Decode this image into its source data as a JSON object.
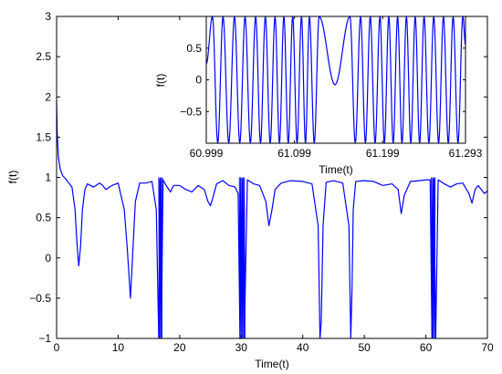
{
  "chart_data": [
    {
      "type": "line",
      "role": "main",
      "xlabel": "Time(t)",
      "ylabel": "f(t)",
      "xlim": [
        0,
        70
      ],
      "ylim": [
        -1,
        3
      ],
      "xticks": [
        0,
        10,
        20,
        30,
        40,
        50,
        60,
        70
      ],
      "yticks": [
        -1,
        -0.5,
        0,
        0.5,
        1,
        1.5,
        2,
        2.5,
        3
      ],
      "ytick_labels": [
        "−1",
        "−0.5",
        "0",
        "0.5",
        "1",
        "1.5",
        "2",
        "2.5",
        "3"
      ],
      "grid": false,
      "line_color": "#0000ff",
      "series": [
        {
          "x": [
            0,
            0.1,
            0.3,
            0.6,
            1.0,
            1.5,
            2.0,
            2.5,
            3.0,
            3.3,
            3.6,
            3.9,
            4.2,
            4.6,
            5.0,
            6.0,
            7.0,
            7.5,
            8.0,
            9.0,
            10.0,
            11.0,
            11.5,
            12.0,
            12.4,
            12.8,
            13.5,
            14.5,
            15.5,
            16.2,
            16.6,
            16.8,
            17.0,
            17.3,
            17.8,
            18.5,
            19.0,
            20.0,
            21.0,
            22.0,
            23.0,
            24.0,
            24.6,
            25.0,
            25.4,
            26.0,
            27.0,
            28.0,
            29.0,
            29.5,
            29.8,
            30.2,
            30.5,
            31.0,
            32.0,
            33.0,
            34.0,
            34.5,
            35.0,
            35.5,
            36.5,
            38.0,
            40.0,
            41.5,
            42.5,
            42.8,
            43.0,
            43.3,
            43.8,
            45.0,
            46.5,
            47.5,
            47.8,
            48.0,
            48.2,
            48.6,
            50.0,
            51.5,
            53.0,
            54.5,
            55.5,
            56.0,
            56.5,
            57.5,
            59.0,
            60.0,
            60.7,
            61.0,
            61.3,
            61.6,
            62.0,
            63.0,
            64.0,
            65.0,
            66.0,
            67.0,
            67.5,
            68.0,
            68.5,
            69.0,
            69.5,
            70.0
          ],
          "y": [
            1.95,
            1.55,
            1.25,
            1.1,
            1.02,
            0.98,
            0.93,
            0.88,
            0.6,
            0.2,
            -0.1,
            0.15,
            0.6,
            0.85,
            0.92,
            0.88,
            0.93,
            0.9,
            0.85,
            0.9,
            0.93,
            0.6,
            0.1,
            -0.5,
            0.1,
            0.7,
            0.93,
            0.93,
            0.95,
            0.6,
            -1,
            0.97,
            -1,
            0.97,
            0.9,
            0.82,
            0.9,
            0.9,
            0.85,
            0.82,
            0.9,
            0.85,
            0.7,
            0.65,
            0.75,
            0.92,
            0.96,
            0.9,
            0.88,
            0.8,
            -1,
            0.98,
            -1,
            0.97,
            0.92,
            0.9,
            0.7,
            0.4,
            0.6,
            0.85,
            0.93,
            0.96,
            0.95,
            0.92,
            0.4,
            -1,
            -0.8,
            0.4,
            0.94,
            0.96,
            0.93,
            0.4,
            -1,
            -0.4,
            0.6,
            0.95,
            0.96,
            0.95,
            0.9,
            0.92,
            0.85,
            0.55,
            0.78,
            0.95,
            0.96,
            0.97,
            0.97,
            -1,
            0.98,
            -1,
            0.97,
            0.92,
            0.88,
            0.92,
            0.93,
            0.8,
            0.68,
            0.85,
            0.9,
            0.85,
            0.8,
            0.83
          ]
        }
      ],
      "burst_regions": [
        [
          16.6,
          17.2
        ],
        [
          29.7,
          30.6
        ],
        [
          60.9,
          61.5
        ]
      ]
    },
    {
      "type": "line",
      "role": "inset",
      "xlabel": "Time(t)",
      "ylabel": "f(t)",
      "xlim": [
        60.999,
        61.293
      ],
      "ylim": [
        -1,
        1
      ],
      "xticks": [
        60.999,
        61.099,
        61.199,
        61.293
      ],
      "xtick_labels": [
        "60.999",
        "61.099",
        "61.199",
        "61.293"
      ],
      "yticks": [
        -0.5,
        0,
        0.5
      ],
      "ytick_labels": [
        "−0.5",
        "0",
        "0.5"
      ],
      "line_color": "#0000ff",
      "series": [
        {
          "description": "fast oscillation between -1 and 1 with a slow dip near t = 61.145",
          "peaks": [
            61.006,
            61.018,
            61.031,
            61.043,
            61.055,
            61.066,
            61.077,
            61.087,
            61.097,
            61.107,
            61.116,
            61.127,
            61.162,
            61.174,
            61.185,
            61.196,
            61.206,
            61.216,
            61.226,
            61.236,
            61.246,
            61.257,
            61.268,
            61.279,
            61.29
          ],
          "dip_x": 61.145,
          "dip_y": -0.08
        }
      ]
    }
  ]
}
